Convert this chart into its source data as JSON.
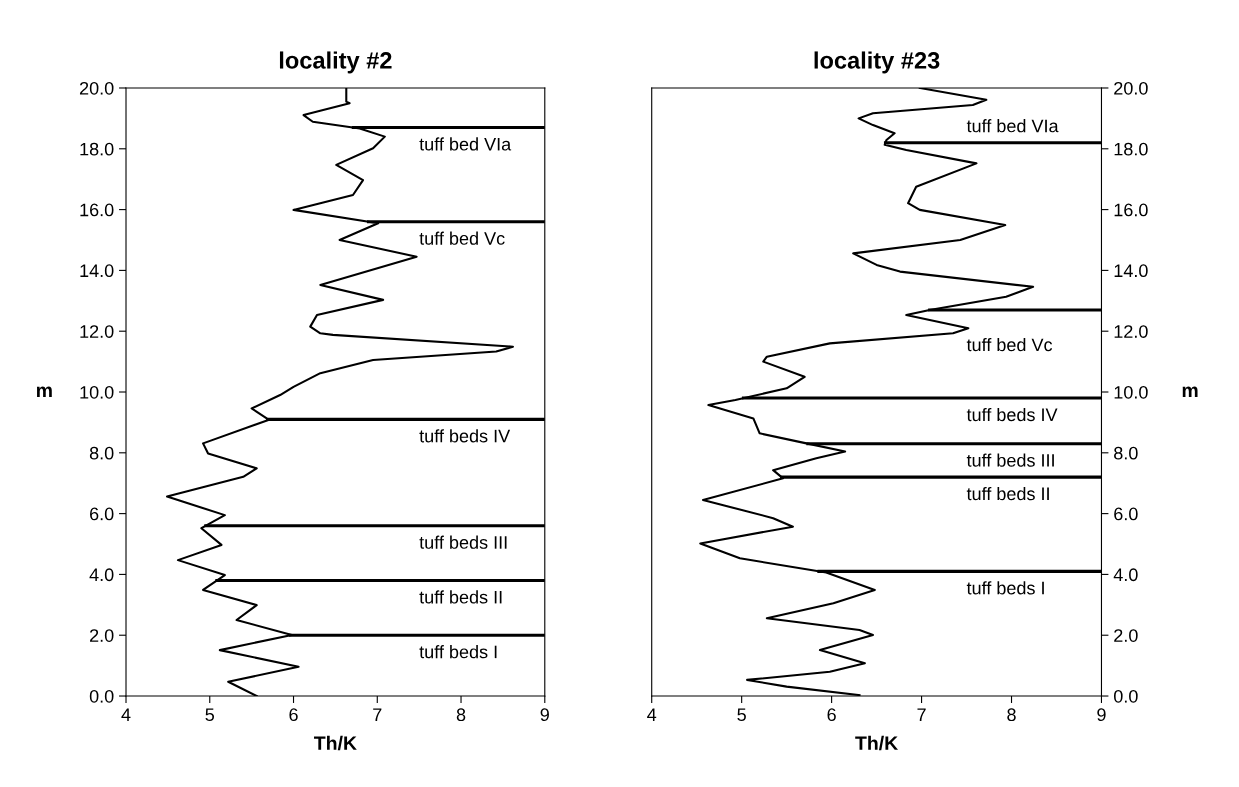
{
  "chart_data": [
    {
      "type": "line",
      "title": "locality #2",
      "xlabel": "Th/K",
      "ylabel": "m",
      "xlim": [
        4,
        9
      ],
      "xticks": [
        4,
        5,
        6,
        7,
        8,
        9
      ],
      "ylim": [
        0,
        20
      ],
      "yticks": [
        {
          "value": 0,
          "label": "0.0"
        },
        {
          "value": 2,
          "label": "2.0"
        },
        {
          "value": 4,
          "label": "4.0"
        },
        {
          "value": 6,
          "label": "6.0"
        },
        {
          "value": 8,
          "label": "8.0"
        },
        {
          "value": 10,
          "label": "10.0"
        },
        {
          "value": 12,
          "label": "12.0"
        },
        {
          "value": 14,
          "label": "14.0"
        },
        {
          "value": 16,
          "label": "16.0"
        },
        {
          "value": 18,
          "label": "18.0"
        },
        {
          "value": 20,
          "label": "20.0"
        }
      ],
      "grid": false,
      "legend": false,
      "marker": "none",
      "line_style": "solid",
      "series": [
        {
          "color": "#000000",
          "x": [
            5.56,
            5.22,
            6.06,
            5.12,
            5.98,
            5.32,
            5.56,
            4.92,
            5.18,
            4.62,
            5.14,
            4.9,
            5.18,
            4.49,
            5.4,
            5.56,
            4.98,
            4.92,
            5.7,
            5.68,
            5.5,
            5.84,
            6.0,
            6.32,
            6.95,
            8.42,
            8.62,
            6.47,
            6.32,
            6.2,
            6.28,
            7.07,
            6.32,
            7.47,
            6.55,
            7.01,
            6.0,
            6.71,
            6.83,
            6.51,
            6.95,
            7.09,
            6.79,
            6.23,
            6.12,
            6.67,
            6.63,
            6.63
          ],
          "values": [
            0.0,
            0.47,
            0.96,
            1.51,
            2.01,
            2.5,
            2.99,
            3.49,
            3.98,
            4.47,
            4.97,
            5.52,
            5.95,
            6.56,
            7.21,
            7.49,
            7.98,
            8.31,
            9.08,
            9.13,
            9.46,
            9.9,
            10.17,
            10.62,
            11.05,
            11.33,
            11.49,
            11.88,
            11.93,
            12.15,
            12.53,
            13.03,
            13.52,
            14.45,
            15.0,
            15.55,
            15.99,
            16.48,
            16.97,
            17.47,
            18.02,
            18.4,
            18.67,
            18.89,
            19.11,
            19.5,
            19.55,
            20.0
          ]
        }
      ],
      "ref_lines": [
        {
          "axis": "y",
          "value": 18.7,
          "color": "#000000",
          "label": "tuff bed VIa"
        },
        {
          "axis": "y",
          "value": 15.6,
          "color": "#000000",
          "label": "tuff bed Vc"
        },
        {
          "axis": "y",
          "value": 9.1,
          "color": "#000000",
          "label": "tuff beds IV"
        },
        {
          "axis": "y",
          "value": 5.6,
          "color": "#000000",
          "label": "tuff beds III"
        },
        {
          "axis": "y",
          "value": 3.8,
          "color": "#000000",
          "label": "tuff beds II"
        },
        {
          "axis": "y",
          "value": 2.0,
          "color": "#000000",
          "label": "tuff beds I"
        }
      ]
    },
    {
      "type": "line",
      "title": "locality #23",
      "xlabel": "Th/K",
      "y2label": "m",
      "xlim": [
        4,
        9
      ],
      "xticks": [
        4,
        5,
        6,
        7,
        8,
        9
      ],
      "y2lim": [
        0,
        20
      ],
      "y2ticks": [
        {
          "value": 0,
          "label": "0.0"
        },
        {
          "value": 2,
          "label": "2.0"
        },
        {
          "value": 4,
          "label": "4.0"
        },
        {
          "value": 6,
          "label": "6.0"
        },
        {
          "value": 8,
          "label": "8.0"
        },
        {
          "value": 10,
          "label": "10.0"
        },
        {
          "value": 12,
          "label": "12.0"
        },
        {
          "value": 14,
          "label": "14.0"
        },
        {
          "value": 16,
          "label": "16.0"
        },
        {
          "value": 18,
          "label": "18.0"
        },
        {
          "value": 20,
          "label": "20.0"
        }
      ],
      "grid": false,
      "legend": false,
      "marker": "none",
      "line_style": "solid",
      "series": [
        {
          "color": "#000000",
          "axis": "y2",
          "x": [
            6.31,
            5.5,
            5.06,
            5.98,
            6.37,
            5.87,
            6.46,
            6.31,
            5.28,
            6.02,
            6.48,
            5.94,
            4.98,
            4.54,
            5.57,
            5.35,
            4.57,
            5.46,
            5.35,
            5.83,
            6.15,
            5.72,
            5.2,
            5.13,
            4.63,
            4.93,
            5.5,
            5.7,
            5.24,
            5.28,
            5.98,
            7.35,
            7.52,
            6.83,
            7.09,
            7.94,
            8.24,
            6.76,
            6.5,
            6.24,
            7.43,
            7.93,
            6.98,
            6.85,
            6.94,
            7.61,
            6.83,
            6.59,
            6.61,
            6.7,
            6.46,
            6.3,
            6.46,
            7.57,
            7.72,
            6.98
          ],
          "values": [
            0.03,
            0.31,
            0.53,
            0.8,
            1.08,
            1.51,
            2.01,
            2.17,
            2.56,
            3.05,
            3.49,
            4.06,
            4.53,
            5.02,
            5.57,
            5.85,
            6.45,
            7.16,
            7.43,
            7.82,
            8.04,
            8.31,
            8.64,
            9.13,
            9.57,
            9.74,
            10.12,
            10.5,
            11.0,
            11.16,
            11.6,
            11.93,
            12.1,
            12.53,
            12.7,
            13.13,
            13.46,
            13.96,
            14.18,
            14.56,
            15.0,
            15.49,
            15.99,
            16.21,
            16.75,
            17.52,
            17.96,
            18.13,
            18.29,
            18.51,
            18.78,
            19.0,
            19.17,
            19.44,
            19.61,
            20.0
          ]
        }
      ],
      "ref_lines": [
        {
          "axis": "y2",
          "value": 18.2,
          "color": "#000000",
          "label": "tuff bed VIa"
        },
        {
          "axis": "y2",
          "value": 12.7,
          "color": "#000000",
          "label": "tuff bed Vc"
        },
        {
          "axis": "y2",
          "value": 9.8,
          "color": "#000000",
          "label": "tuff beds IV"
        },
        {
          "axis": "y2",
          "value": 8.3,
          "color": "#000000",
          "label": "tuff beds III"
        },
        {
          "axis": "y2",
          "value": 7.2,
          "color": "#000000",
          "label": "tuff beds II"
        },
        {
          "axis": "y2",
          "value": 4.1,
          "color": "#000000",
          "label": "tuff beds I"
        }
      ]
    }
  ]
}
